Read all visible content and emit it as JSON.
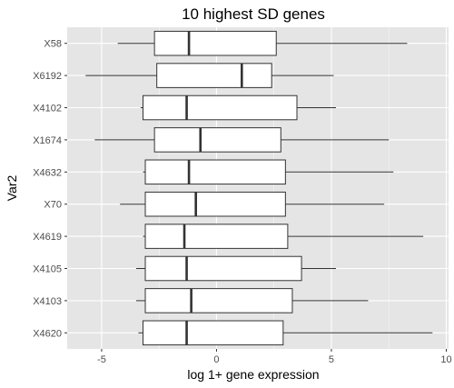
{
  "chart_data": {
    "type": "boxplot",
    "orientation": "horizontal",
    "title": "10 highest SD genes",
    "xlabel": "log 1+ gene expression",
    "ylabel": "Var2",
    "xlim": [
      -6.5,
      10.1
    ],
    "xticks": [
      -5,
      0,
      5,
      10
    ],
    "grid": true,
    "legend": "none",
    "categories": [
      "X58",
      "X6192",
      "X4102",
      "X1674",
      "X4632",
      "X70",
      "X4619",
      "X4105",
      "X4103",
      "X4620"
    ],
    "boxes": [
      {
        "label": "X58",
        "whisker_low": -4.3,
        "q1": -2.7,
        "median": -1.2,
        "q3": 2.6,
        "whisker_high": 8.3
      },
      {
        "label": "X6192",
        "whisker_low": -5.7,
        "q1": -2.6,
        "median": 1.1,
        "q3": 2.4,
        "whisker_high": 5.1
      },
      {
        "label": "X4102",
        "whisker_low": -3.3,
        "q1": -3.2,
        "median": -1.3,
        "q3": 3.5,
        "whisker_high": 5.2
      },
      {
        "label": "X1674",
        "whisker_low": -5.3,
        "q1": -2.7,
        "median": -0.7,
        "q3": 2.8,
        "whisker_high": 7.5
      },
      {
        "label": "X4632",
        "whisker_low": -3.2,
        "q1": -3.1,
        "median": -1.2,
        "q3": 3.0,
        "whisker_high": 7.7
      },
      {
        "label": "X70",
        "whisker_low": -4.2,
        "q1": -3.1,
        "median": -0.9,
        "q3": 3.0,
        "whisker_high": 7.3
      },
      {
        "label": "X4619",
        "whisker_low": -3.2,
        "q1": -3.1,
        "median": -1.4,
        "q3": 3.1,
        "whisker_high": 9.0
      },
      {
        "label": "X4105",
        "whisker_low": -3.5,
        "q1": -3.1,
        "median": -1.3,
        "q3": 3.7,
        "whisker_high": 5.2
      },
      {
        "label": "X4103",
        "whisker_low": -3.5,
        "q1": -3.1,
        "median": -1.1,
        "q3": 3.3,
        "whisker_high": 6.6
      },
      {
        "label": "X4620",
        "whisker_low": -3.4,
        "q1": -3.2,
        "median": -1.3,
        "q3": 2.9,
        "whisker_high": 9.4
      }
    ]
  },
  "colors": {
    "panel_background": "#e5e5e5",
    "grid_major": "#ffffff",
    "box_fill": "#ffffff",
    "box_stroke": "#333333",
    "tick_text": "#4d4d4d",
    "title_text": "#000000"
  }
}
